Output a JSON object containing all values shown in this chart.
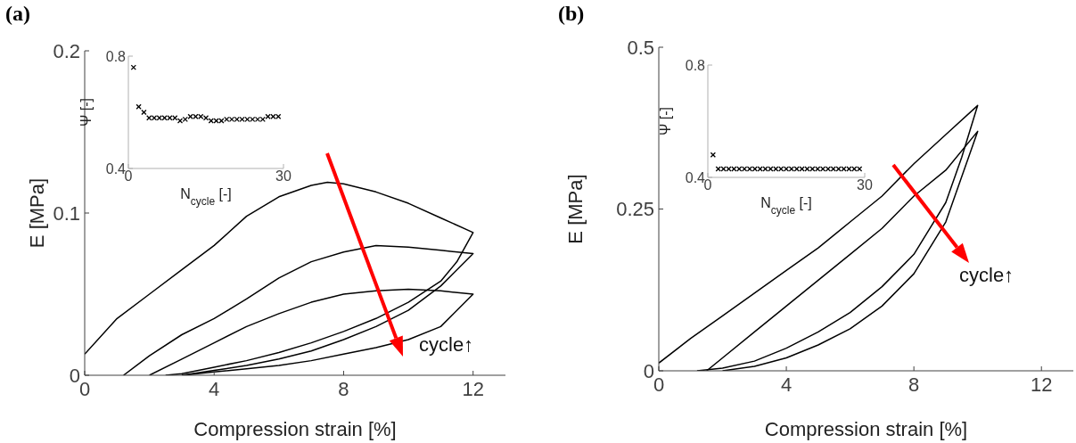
{
  "chart_data": [
    {
      "type": "line",
      "title": "(a)",
      "xlabel": "Compression strain [%]",
      "ylabel": "E [MPa]",
      "xlim": [
        0,
        13
      ],
      "xticks": [
        0,
        4,
        8,
        12
      ],
      "ylim": [
        0,
        0.2
      ],
      "yticks": [
        0,
        0.1,
        0.2
      ],
      "marker": "none",
      "annotations": [
        "cycle↑"
      ],
      "series": [
        {
          "color": "#000000",
          "x": [
            0,
            1,
            2,
            3,
            4,
            5,
            6,
            7,
            7.5,
            8,
            9,
            10,
            11,
            12,
            11.5,
            11,
            10,
            9,
            8,
            7,
            6,
            5,
            4,
            3,
            2.5
          ],
          "values": [
            0.013,
            0.035,
            0.05,
            0.065,
            0.08,
            0.098,
            0.11,
            0.117,
            0.119,
            0.118,
            0.113,
            0.106,
            0.097,
            0.088,
            0.07,
            0.058,
            0.045,
            0.035,
            0.027,
            0.02,
            0.014,
            0.009,
            0.005,
            0.001,
            0
          ]
        },
        {
          "color": "#000000",
          "x": [
            1.2,
            2,
            3,
            4,
            5,
            6,
            7,
            8,
            9,
            10,
            11,
            12,
            11,
            10,
            9,
            8,
            7,
            6,
            5,
            4,
            3
          ],
          "values": [
            0,
            0.012,
            0.025,
            0.035,
            0.047,
            0.06,
            0.07,
            0.076,
            0.08,
            0.079,
            0.077,
            0.075,
            0.055,
            0.04,
            0.03,
            0.022,
            0.015,
            0.01,
            0.006,
            0.003,
            0
          ]
        },
        {
          "color": "#000000",
          "x": [
            2,
            3,
            4,
            5,
            6,
            7,
            8,
            9,
            10,
            11,
            12,
            11,
            10,
            9,
            8,
            7,
            6,
            5,
            4,
            3
          ],
          "values": [
            0,
            0.01,
            0.02,
            0.03,
            0.038,
            0.045,
            0.05,
            0.052,
            0.053,
            0.052,
            0.05,
            0.03,
            0.022,
            0.017,
            0.013,
            0.009,
            0.006,
            0.004,
            0.002,
            0
          ]
        }
      ]
    },
    {
      "type": "scatter",
      "xlabel": "N$_{cycle}$ [-]",
      "ylabel": "Ψ [-]",
      "xlim": [
        0,
        30
      ],
      "xticks": [
        0,
        30
      ],
      "ylim": [
        0.4,
        0.8
      ],
      "yticks": [
        0.4,
        0.8
      ],
      "marker": "cross",
      "series": [
        {
          "color": "#000000",
          "x": [
            1,
            2,
            3,
            4,
            5,
            6,
            7,
            8,
            9,
            10,
            11,
            12,
            13,
            14,
            15,
            16,
            17,
            18,
            19,
            20,
            21,
            22,
            23,
            24,
            25,
            26,
            27,
            28,
            29
          ],
          "values": [
            0.76,
            0.62,
            0.6,
            0.58,
            0.58,
            0.58,
            0.58,
            0.58,
            0.58,
            0.57,
            0.575,
            0.585,
            0.585,
            0.585,
            0.58,
            0.57,
            0.57,
            0.57,
            0.575,
            0.575,
            0.575,
            0.575,
            0.575,
            0.575,
            0.575,
            0.575,
            0.585,
            0.585,
            0.585
          ]
        }
      ]
    },
    {
      "type": "line",
      "title": "(b)",
      "xlabel": "Compression strain [%]",
      "ylabel": "E [MPa]",
      "xlim": [
        0,
        13
      ],
      "xticks": [
        0,
        4,
        8,
        12
      ],
      "ylim": [
        0,
        0.5
      ],
      "yticks": [
        0,
        0.25,
        0.5
      ],
      "marker": "none",
      "annotations": [
        "cycle↑"
      ],
      "series": [
        {
          "color": "#000000",
          "x": [
            0,
            1,
            2,
            3,
            4,
            5,
            6,
            7,
            8,
            9,
            10,
            9.5,
            9,
            8,
            7,
            6,
            5,
            4,
            3,
            2,
            1.2
          ],
          "values": [
            0.012,
            0.05,
            0.085,
            0.12,
            0.155,
            0.19,
            0.23,
            0.27,
            0.32,
            0.365,
            0.41,
            0.33,
            0.26,
            0.18,
            0.13,
            0.09,
            0.06,
            0.035,
            0.015,
            0.004,
            0
          ]
        },
        {
          "color": "#000000",
          "x": [
            1.5,
            2,
            3,
            4,
            5,
            6,
            7,
            8,
            9,
            10,
            9.5,
            9,
            8,
            7,
            6,
            5,
            4,
            3,
            2
          ],
          "values": [
            0,
            0.02,
            0.06,
            0.1,
            0.14,
            0.18,
            0.22,
            0.27,
            0.31,
            0.37,
            0.3,
            0.23,
            0.15,
            0.1,
            0.065,
            0.04,
            0.02,
            0.007,
            0
          ]
        }
      ]
    },
    {
      "type": "scatter",
      "xlabel": "N$_{cycle}$ [-]",
      "ylabel": "Ψ [-]",
      "xlim": [
        0,
        30
      ],
      "xticks": [
        0,
        30
      ],
      "ylim": [
        0.4,
        0.8
      ],
      "yticks": [
        0.4,
        0.8
      ],
      "marker": "cross",
      "series": [
        {
          "color": "#000000",
          "x": [
            1,
            2,
            3,
            4,
            5,
            6,
            7,
            8,
            9,
            10,
            11,
            12,
            13,
            14,
            15,
            16,
            17,
            18,
            19,
            20,
            21,
            22,
            23,
            24,
            25,
            26,
            27,
            28,
            29
          ],
          "values": [
            0.48,
            0.43,
            0.43,
            0.43,
            0.43,
            0.43,
            0.43,
            0.43,
            0.43,
            0.43,
            0.43,
            0.43,
            0.43,
            0.43,
            0.43,
            0.43,
            0.43,
            0.43,
            0.43,
            0.43,
            0.43,
            0.43,
            0.43,
            0.43,
            0.43,
            0.43,
            0.43,
            0.43,
            0.43
          ]
        }
      ]
    }
  ]
}
